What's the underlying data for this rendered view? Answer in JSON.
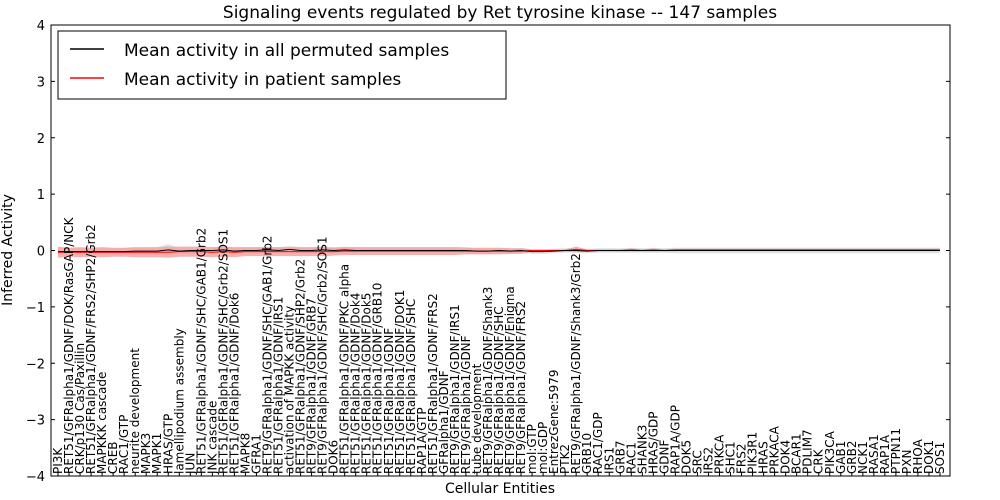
{
  "chart_data": {
    "type": "line",
    "title": "Signaling events regulated by Ret tyrosine kinase -- 147 samples",
    "xlabel": "Cellular Entities",
    "ylabel": "Inferred Activity",
    "ylim": [
      -4,
      4
    ],
    "yticks": [
      "4",
      "3",
      "2",
      "1",
      "0",
      "−1",
      "−2",
      "−3",
      "−4"
    ],
    "grid": false,
    "legend_position": "top-left",
    "legend": [
      {
        "label": "Mean activity in all permuted samples",
        "color": "#000000"
      },
      {
        "label": "Mean activity in patient samples",
        "color": "#ff0000"
      }
    ],
    "colors": {
      "permuted_line": "#000000",
      "patient_line": "#ff0000",
      "patient_band": "#f7a3a3",
      "permuted_band": "#cccccc"
    },
    "categories": [
      "PI3K",
      "RET51/GFRalpha1/GDNF/DOK/RasGAP/NCK",
      "CRK/p130 Cas/Paxillin",
      "RET51/GFRalpha1/GDNF/FRS2/SHP2/Grb2",
      "MAPKKK cascade",
      "CREB",
      "RAC1/GTP",
      "neurite development",
      "MAPK3",
      "MAPK1",
      "HRAS/GTP",
      "lamellipodium assembly",
      "JUN",
      "RET51/GFRalpha1/GDNF/SHC/GAB1/Grb2",
      "JNK cascade",
      "RET51/GFRalpha1/GDNF/SHC/Grb2/SOS1",
      "RET51/GFRalpha1/GDNF/Dok6",
      "MAPK8",
      "GFRA1",
      "RET9/GFRalpha1/GDNF/SHC/GAB1/Grb2",
      "RET51/GFRalpha1/GDNF/IRS1",
      "activation of MAPKK activity",
      "RET51/GFRalpha1/GDNF/SHP2/Grb2",
      "RET9/GFRalpha1/GDNF/GRB7",
      "RET9/GFRalpha1/GDNF/SHC/Grb2/SOS1",
      "DOK6",
      "RET51/GFRalpha1/GDNF/PKC alpha",
      "RET51/GFRalpha1/GDNF/Dok4",
      "RET51/GFRalpha1/GDNF/Dok5",
      "RET51/GFRalpha1/GDNF/GRB10",
      "RET51/GFRalpha1/GDNF",
      "RET51/GFRalpha1/GDNF/DOK1",
      "RET51/GFRalpha1/GDNF/SHC",
      "RAP1A/GTP",
      "RET51/GFRalpha1/GDNF/FRS2",
      "GFRalpha1/GDNF",
      "RET9/GFRalpha1/GDNF/IRS1",
      "RET9/GFRalpha1/GDNF",
      "tube development",
      "RET9/GFRalpha1/GDNF/Shank3",
      "RET9/GFRalpha1/GDNF/SHC",
      "RET9/GFRalpha1/GDNF/Enigma",
      "RET9/GFRalpha1/GDNF/FRS2",
      "mol:GTP",
      "mol:GDP",
      "EntrezGene:5979",
      "PTK2",
      "RET9/GFRalpha1/GDNF/Shank3/Grb2",
      "GRB10",
      "RAC1/GDP",
      "IRS1",
      "GRB7",
      "RAC1",
      "SHANK3",
      "HRAS/GDP",
      "GDNF",
      "RAP1A/GDP",
      "DOK5",
      "SRC",
      "IRS2",
      "PRKCA",
      "SHC1",
      "FRS2",
      "PIK3R1",
      "HRAS",
      "PRKACA",
      "DOK4",
      "BCAR1",
      "PDLIM7",
      "CRK",
      "PIK3CA",
      "GAB1",
      "GRB2",
      "NCK1",
      "RASA1",
      "RAP1A",
      "PTPN11",
      "PXN",
      "RHOA",
      "DOK1",
      "SOS1"
    ],
    "series": [
      {
        "name": "Mean activity in patient samples",
        "values": [
          -0.03,
          -0.03,
          -0.03,
          -0.03,
          -0.03,
          -0.03,
          -0.03,
          -0.03,
          -0.03,
          -0.03,
          -0.03,
          -0.02,
          -0.02,
          -0.02,
          -0.03,
          -0.02,
          -0.03,
          -0.02,
          -0.02,
          -0.02,
          -0.02,
          -0.02,
          -0.02,
          -0.02,
          -0.02,
          -0.02,
          -0.01,
          -0.01,
          -0.01,
          -0.01,
          -0.01,
          -0.01,
          -0.01,
          -0.01,
          -0.01,
          -0.01,
          -0.01,
          -0.01,
          -0.01,
          -0.01,
          -0.01,
          -0.01,
          -0.01,
          0.0,
          0.0,
          0.0,
          0.0,
          0.02,
          0.0,
          0.0,
          0.0,
          0.0,
          0.01,
          0.0,
          0.01,
          0.0,
          0.01,
          0.01,
          0.01,
          0.01,
          0.01,
          0.01,
          0.01,
          0.01,
          0.01,
          0.01,
          0.01,
          0.01,
          0.01,
          0.01,
          0.01,
          0.01,
          0.01,
          0.01,
          0.01,
          0.01,
          0.01,
          0.01,
          0.01,
          0.01,
          0.01
        ],
        "spread": [
          0.1,
          0.08,
          0.09,
          0.08,
          0.09,
          0.08,
          0.08,
          0.09,
          0.09,
          0.09,
          0.1,
          0.09,
          0.09,
          0.09,
          0.09,
          0.09,
          0.09,
          0.08,
          0.08,
          0.08,
          0.08,
          0.08,
          0.08,
          0.08,
          0.08,
          0.07,
          0.07,
          0.07,
          0.07,
          0.07,
          0.07,
          0.07,
          0.07,
          0.07,
          0.07,
          0.07,
          0.07,
          0.06,
          0.06,
          0.06,
          0.06,
          0.05,
          0.05,
          0.02,
          0.02,
          0.02,
          0.02,
          0.05,
          0.02,
          0.02,
          0.02,
          0.02,
          0.03,
          0.02,
          0.03,
          0.02,
          0.02,
          0.02,
          0.02,
          0.02,
          0.02,
          0.02,
          0.02,
          0.02,
          0.02,
          0.02,
          0.02,
          0.02,
          0.02,
          0.02,
          0.02,
          0.02,
          0.02,
          0.02,
          0.02,
          0.02,
          0.02,
          0.02,
          0.02,
          0.02,
          0.02
        ]
      },
      {
        "name": "Mean activity in all permuted samples",
        "values": [
          -0.02,
          -0.02,
          -0.02,
          -0.02,
          -0.02,
          -0.02,
          -0.02,
          -0.01,
          -0.01,
          -0.01,
          0.01,
          -0.01,
          0.0,
          0.0,
          0.0,
          0.01,
          -0.01,
          0.0,
          0.0,
          0.01,
          0.0,
          0.02,
          0.0,
          0.0,
          0.01,
          0.0,
          0.01,
          0.0,
          0.0,
          0.0,
          0.0,
          0.0,
          0.0,
          0.0,
          0.0,
          0.0,
          0.0,
          0.0,
          -0.01,
          -0.01,
          0.0,
          -0.01,
          0.0,
          -0.02,
          -0.02,
          -0.01,
          0.0,
          0.0,
          -0.01,
          0.0,
          0.0,
          0.0,
          0.0,
          0.0,
          0.0,
          0.0,
          0.0,
          0.0,
          0.0,
          0.0,
          0.0,
          0.0,
          0.0,
          0.0,
          0.0,
          0.0,
          0.0,
          0.0,
          0.0,
          0.0,
          0.0,
          0.0,
          0.0,
          0.0,
          0.0,
          0.0,
          0.0,
          0.0,
          0.0,
          0.0,
          0.0
        ],
        "spread": [
          0.06,
          0.06,
          0.06,
          0.06,
          0.06,
          0.06,
          0.06,
          0.06,
          0.06,
          0.07,
          0.1,
          0.06,
          0.06,
          0.06,
          0.06,
          0.06,
          0.06,
          0.06,
          0.06,
          0.06,
          0.06,
          0.06,
          0.06,
          0.06,
          0.06,
          0.06,
          0.06,
          0.06,
          0.06,
          0.06,
          0.06,
          0.06,
          0.06,
          0.06,
          0.06,
          0.06,
          0.06,
          0.06,
          0.05,
          0.05,
          0.05,
          0.05,
          0.05,
          0.04,
          0.04,
          0.04,
          0.04,
          0.04,
          0.04,
          0.04,
          0.04,
          0.04,
          0.04,
          0.04,
          0.04,
          0.04,
          0.05,
          0.05,
          0.05,
          0.05,
          0.05,
          0.05,
          0.05,
          0.05,
          0.05,
          0.05,
          0.05,
          0.05,
          0.05,
          0.05,
          0.05,
          0.05,
          0.05,
          0.05,
          0.05,
          0.05,
          0.05,
          0.05,
          0.05,
          0.05,
          0.05
        ]
      }
    ]
  }
}
